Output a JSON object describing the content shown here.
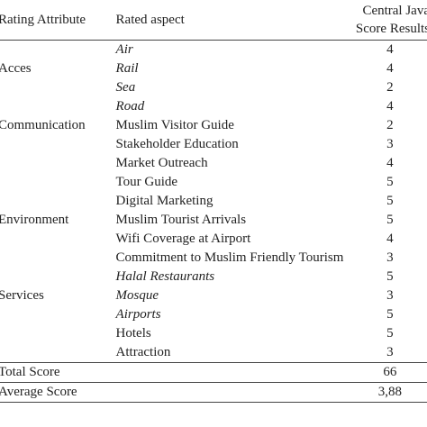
{
  "header": {
    "attribute": "Rating Attribute",
    "aspect": "Rated aspect",
    "score_lines": [
      "Central Java",
      "Score Results"
    ]
  },
  "rows": [
    {
      "aspect": "Air",
      "score": 4,
      "italic": true
    },
    {
      "attribute": "Acces",
      "aspect": "Rail",
      "score": 4,
      "italic": true
    },
    {
      "aspect": "Sea",
      "score": 2,
      "italic": true
    },
    {
      "aspect": "Road",
      "score": 4,
      "italic": true
    },
    {
      "attribute": "Communication",
      "aspect": "Muslim Visitor Guide",
      "score": 2,
      "italic": false
    },
    {
      "aspect": "Stakeholder Education",
      "score": 3,
      "italic": false
    },
    {
      "aspect": "Market Outreach",
      "score": 4,
      "italic": false
    },
    {
      "aspect": "Tour Guide",
      "score": 5,
      "italic": false
    },
    {
      "aspect": "Digital Marketing",
      "score": 5,
      "italic": false
    },
    {
      "attribute": "Environment",
      "aspect": "Muslim Tourist Arrivals",
      "score": 5,
      "italic": false
    },
    {
      "aspect": "Wifi Coverage at Airport",
      "score": 4,
      "italic": false
    },
    {
      "aspect": "Commitment to Muslim Friendly Tourism",
      "score": 3,
      "italic": false
    },
    {
      "aspect": "Halal Restaurants",
      "score": 5,
      "italic": true
    },
    {
      "attribute": "Services",
      "aspect": "Mosque",
      "score": 3,
      "italic": true
    },
    {
      "aspect": "Airports",
      "score": 5,
      "italic": true
    },
    {
      "aspect": "Hotels",
      "score": 5,
      "italic": false
    },
    {
      "aspect": "Attraction",
      "score": 3,
      "italic": false
    }
  ],
  "total": {
    "label": "Total Score",
    "value": 66
  },
  "average": {
    "label": "Average Score",
    "value": "3,88"
  }
}
